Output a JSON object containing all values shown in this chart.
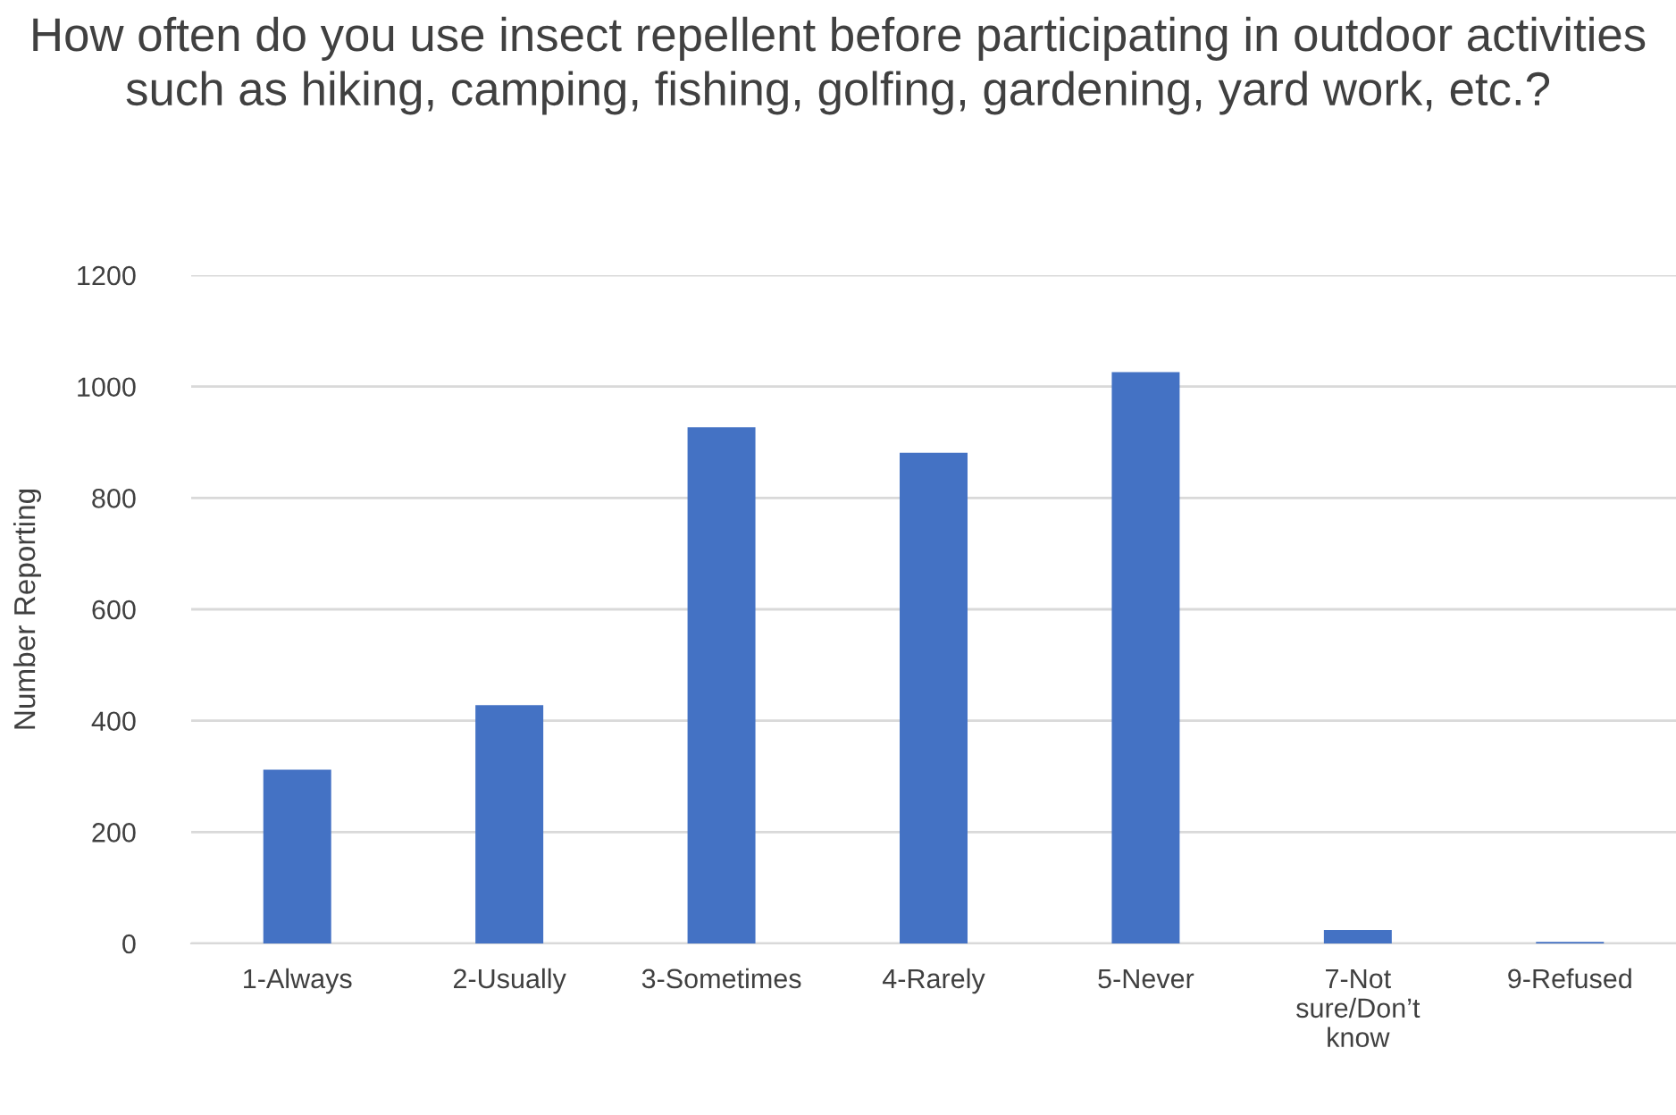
{
  "chart_data": {
    "type": "bar",
    "title": "How often do you use insect repellent before participating in outdoor activities such as hiking, camping, fishing, golfing, gardening, yard work, etc.?",
    "ylabel": "Number Reporting",
    "categories": [
      "1-Always",
      "2-Usually",
      "3-Sometimes",
      "4-Rarely",
      "5-Never",
      "7-Not\nsure/Don’t\nknow",
      "9-Refused"
    ],
    "values": [
      312,
      428,
      927,
      881,
      1026,
      24,
      3
    ],
    "color": "#4472c4",
    "ylim": [
      0,
      1200
    ],
    "yticks": [
      0,
      200,
      400,
      600,
      800,
      1000,
      1200
    ],
    "grid": "y"
  }
}
